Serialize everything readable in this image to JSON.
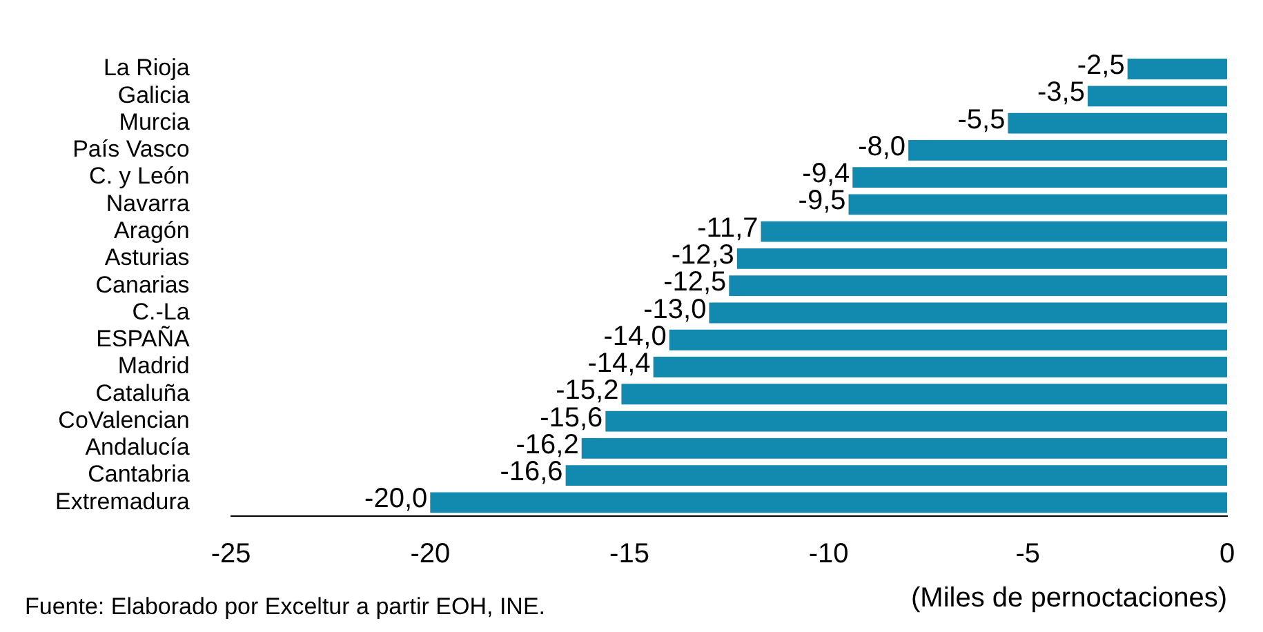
{
  "chart_data": {
    "type": "bar",
    "orientation": "horizontal",
    "categories": [
      "La Rioja",
      "Galicia",
      "Murcia",
      "País Vasco",
      "C. y León",
      "Navarra",
      "Aragón",
      "Asturias",
      "Canarias",
      "C.-La",
      "ESPAÑA",
      "Madrid",
      "Cataluña",
      "CoValencian",
      "Andalucía",
      "Cantabria",
      "Extremadura"
    ],
    "values": [
      -2.5,
      -3.5,
      -5.5,
      -8.0,
      -9.4,
      -9.5,
      -11.7,
      -12.3,
      -12.5,
      -13.0,
      -14.0,
      -14.4,
      -15.2,
      -15.6,
      -16.2,
      -16.6,
      -20.0
    ],
    "value_labels": [
      "-2,5",
      "-3,5",
      "-5,5",
      "-8,0",
      "-9,4",
      "-9,5",
      "-11,7",
      "-12,3",
      "-12,5",
      "-13,0",
      "-14,0",
      "-14,4",
      "-15,2",
      "-15,6",
      "-16,2",
      "-16,6",
      "-20,0"
    ],
    "color": "#1289ae",
    "xlim": [
      -25,
      0
    ],
    "xticks": [
      -25,
      -20,
      -15,
      -10,
      -5,
      0
    ],
    "xlabel": "(Miles de pernoctaciones)",
    "annotations": [
      "Fuente: Elaborado por Exceltur a partir EOH, INE."
    ],
    "grid": false,
    "legend": false
  }
}
